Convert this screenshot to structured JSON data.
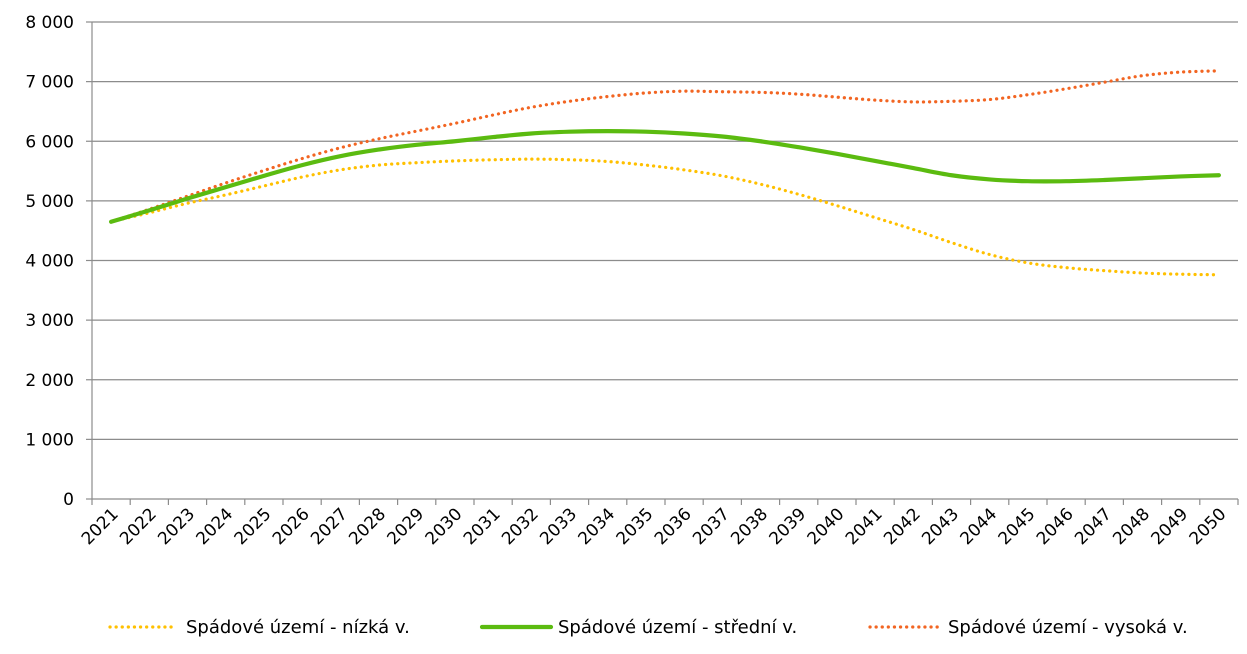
{
  "chart_data": {
    "type": "line",
    "title": "",
    "xlabel": "",
    "ylabel": "",
    "ylim": [
      0,
      8000
    ],
    "yticks": [
      0,
      1000,
      2000,
      3000,
      4000,
      5000,
      6000,
      7000,
      8000
    ],
    "ytick_labels": [
      "0",
      "1 000",
      "2 000",
      "3 000",
      "4 000",
      "5 000",
      "6 000",
      "7 000",
      "8 000"
    ],
    "grid": true,
    "legend_position": "bottom",
    "categories": [
      "2021",
      "2022",
      "2023",
      "2024",
      "2025",
      "2026",
      "2027",
      "2028",
      "2029",
      "2030",
      "2031",
      "2032",
      "2033",
      "2034",
      "2035",
      "2036",
      "2037",
      "2038",
      "2039",
      "2040",
      "2041",
      "2042",
      "2043",
      "2044",
      "2045",
      "2046",
      "2047",
      "2048",
      "2049",
      "2050"
    ],
    "series": [
      {
        "name": "Spádové území - nízká v.",
        "color": "#FFC000",
        "style": "dotted",
        "values": [
          4650,
          4800,
          4960,
          5100,
          5250,
          5400,
          5520,
          5600,
          5640,
          5670,
          5690,
          5700,
          5690,
          5660,
          5600,
          5520,
          5420,
          5280,
          5110,
          4920,
          4720,
          4520,
          4300,
          4100,
          3960,
          3880,
          3830,
          3790,
          3770,
          3760
        ]
      },
      {
        "name": "Spádové území - střední v.",
        "color": "#5BBB10",
        "style": "solid",
        "values": [
          4650,
          4840,
          5040,
          5230,
          5420,
          5600,
          5750,
          5860,
          5940,
          6000,
          6070,
          6130,
          6160,
          6170,
          6160,
          6130,
          6080,
          6000,
          5900,
          5790,
          5670,
          5550,
          5430,
          5360,
          5330,
          5330,
          5350,
          5380,
          5410,
          5430
        ]
      },
      {
        "name": "Spádové území - vysoká v.",
        "color": "#F26522",
        "style": "dotted",
        "values": [
          4650,
          4860,
          5080,
          5300,
          5510,
          5710,
          5890,
          6040,
          6170,
          6300,
          6440,
          6570,
          6670,
          6750,
          6810,
          6840,
          6830,
          6820,
          6790,
          6740,
          6690,
          6660,
          6670,
          6700,
          6780,
          6880,
          6990,
          7100,
          7160,
          7180
        ]
      }
    ]
  }
}
